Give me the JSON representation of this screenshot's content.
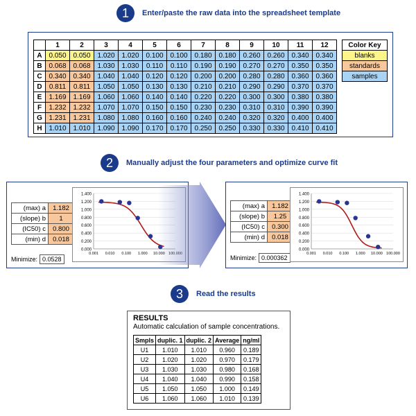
{
  "step1": {
    "number": "1",
    "title": "Enter/paste the raw data into the spreadsheet template"
  },
  "step2": {
    "number": "2",
    "title": "Manually adjust the four parameters and optimize curve fit"
  },
  "step3": {
    "number": "3",
    "title": "Read the results"
  },
  "grid": {
    "columns": [
      "1",
      "2",
      "3",
      "4",
      "5",
      "6",
      "7",
      "8",
      "9",
      "10",
      "11",
      "12"
    ],
    "rows": [
      {
        "label": "A",
        "values": [
          "0.050",
          "0.050",
          "1.020",
          "1.020",
          "0.100",
          "0.100",
          "0.180",
          "0.180",
          "0.260",
          "0.260",
          "0.340",
          "0.340"
        ]
      },
      {
        "label": "B",
        "values": [
          "0.068",
          "0.068",
          "1.030",
          "1.030",
          "0.110",
          "0.110",
          "0.190",
          "0.190",
          "0.270",
          "0.270",
          "0.350",
          "0.350"
        ]
      },
      {
        "label": "C",
        "values": [
          "0.340",
          "0.340",
          "1.040",
          "1.040",
          "0.120",
          "0.120",
          "0.200",
          "0.200",
          "0.280",
          "0.280",
          "0.360",
          "0.360"
        ]
      },
      {
        "label": "D",
        "values": [
          "0.811",
          "0.811",
          "1.050",
          "1.050",
          "0.130",
          "0.130",
          "0.210",
          "0.210",
          "0.290",
          "0.290",
          "0.370",
          "0.370"
        ]
      },
      {
        "label": "E",
        "values": [
          "1.169",
          "1.169",
          "1.060",
          "1.060",
          "0.140",
          "0.140",
          "0.220",
          "0.220",
          "0.300",
          "0.300",
          "0.380",
          "0.380"
        ]
      },
      {
        "label": "F",
        "values": [
          "1.232",
          "1.232",
          "1.070",
          "1.070",
          "0.150",
          "0.150",
          "0.230",
          "0.230",
          "0.310",
          "0.310",
          "0.390",
          "0.390"
        ]
      },
      {
        "label": "G",
        "values": [
          "1.231",
          "1.231",
          "1.080",
          "1.080",
          "0.160",
          "0.160",
          "0.240",
          "0.240",
          "0.320",
          "0.320",
          "0.400",
          "0.400"
        ]
      },
      {
        "label": "H",
        "values": [
          "1.010",
          "1.010",
          "1.090",
          "1.090",
          "0.170",
          "0.170",
          "0.250",
          "0.250",
          "0.330",
          "0.330",
          "0.410",
          "0.410"
        ]
      }
    ],
    "cell_types": [
      [
        "blank",
        "blank",
        "sample",
        "sample",
        "sample",
        "sample",
        "sample",
        "sample",
        "sample",
        "sample",
        "sample",
        "sample"
      ],
      [
        "std",
        "std",
        "sample",
        "sample",
        "sample",
        "sample",
        "sample",
        "sample",
        "sample",
        "sample",
        "sample",
        "sample"
      ],
      [
        "std",
        "std",
        "sample",
        "sample",
        "sample",
        "sample",
        "sample",
        "sample",
        "sample",
        "sample",
        "sample",
        "sample"
      ],
      [
        "std",
        "std",
        "sample",
        "sample",
        "sample",
        "sample",
        "sample",
        "sample",
        "sample",
        "sample",
        "sample",
        "sample"
      ],
      [
        "std",
        "std",
        "sample",
        "sample",
        "sample",
        "sample",
        "sample",
        "sample",
        "sample",
        "sample",
        "sample",
        "sample"
      ],
      [
        "std",
        "std",
        "sample",
        "sample",
        "sample",
        "sample",
        "sample",
        "sample",
        "sample",
        "sample",
        "sample",
        "sample"
      ],
      [
        "std",
        "std",
        "sample",
        "sample",
        "sample",
        "sample",
        "sample",
        "sample",
        "sample",
        "sample",
        "sample",
        "sample"
      ],
      [
        "sample",
        "sample",
        "sample",
        "sample",
        "sample",
        "sample",
        "sample",
        "sample",
        "sample",
        "sample",
        "sample",
        "sample"
      ]
    ]
  },
  "color_key": {
    "title": "Color Key",
    "items": [
      {
        "label": "blanks",
        "type": "blank"
      },
      {
        "label": "standards",
        "type": "std"
      },
      {
        "label": "samples",
        "type": "sample"
      }
    ]
  },
  "colors": {
    "blank": "#fdf58a",
    "std": "#f8c79b",
    "sample": "#a9d3f5",
    "accent": "#1a3a8a",
    "curve": "#b01a1a",
    "point": "#2a3590"
  },
  "fit_before": {
    "params": [
      {
        "label": "(max) a",
        "value": "1.182"
      },
      {
        "label": "(slope) b",
        "value": "1"
      },
      {
        "label": "(IC50) c",
        "value": "0.800"
      },
      {
        "label": "(min) d",
        "value": "0.018"
      }
    ],
    "minimize_label": "Minimize:",
    "minimize_value": "0.0528"
  },
  "fit_after": {
    "params": [
      {
        "label": "(max) a",
        "value": "1.182"
      },
      {
        "label": "(slope) b",
        "value": "1.25"
      },
      {
        "label": "(IC50) c",
        "value": "0.300"
      },
      {
        "label": "(min) d",
        "value": "0.018"
      }
    ],
    "minimize_label": "Minimize:",
    "minimize_value": "0.000362"
  },
  "chart_data": [
    {
      "type": "scatter",
      "x_scale": "log",
      "y_ticks": [
        "1.400",
        "1.200",
        "1.000",
        "0.800",
        "0.600",
        "0.400",
        "0.200",
        "0.000"
      ],
      "x_ticks": [
        "0.001",
        "0.010",
        "0.100",
        "1.000",
        "10.000",
        "100.000"
      ],
      "ylim": [
        0,
        1.4
      ],
      "xlim": [
        0.001,
        100
      ],
      "points": [
        [
          0.003,
          1.2
        ],
        [
          0.04,
          1.18
        ],
        [
          0.15,
          1.16
        ],
        [
          0.5,
          0.78
        ],
        [
          3,
          0.32
        ],
        [
          12,
          0.05
        ]
      ],
      "curve": {
        "a": 1.182,
        "b": 1,
        "c": 0.8,
        "d": 0.018
      }
    },
    {
      "type": "scatter",
      "x_scale": "log",
      "y_ticks": [
        "1.400",
        "1.200",
        "1.000",
        "0.800",
        "0.600",
        "0.400",
        "0.200",
        "0.000"
      ],
      "x_ticks": [
        "0.001",
        "0.010",
        "0.100",
        "1.000",
        "10.000",
        "100.000"
      ],
      "ylim": [
        0,
        1.4
      ],
      "xlim": [
        0.001,
        100
      ],
      "points": [
        [
          0.003,
          1.2
        ],
        [
          0.04,
          1.18
        ],
        [
          0.15,
          1.16
        ],
        [
          0.5,
          0.78
        ],
        [
          3,
          0.32
        ],
        [
          12,
          0.05
        ]
      ],
      "curve": {
        "a": 1.182,
        "b": 1.25,
        "c": 0.3,
        "d": 0.018
      }
    }
  ],
  "results": {
    "title": "RESULTS",
    "subtitle": "Automatic calculation of sample concentrations.",
    "headers": [
      "Smpls",
      "duplic. 1",
      "duplic. 2",
      "Average",
      "ng/ml"
    ],
    "rows": [
      [
        "U1",
        "1.010",
        "1.010",
        "0.960",
        "0.189"
      ],
      [
        "U2",
        "1.020",
        "1.020",
        "0.970",
        "0.179"
      ],
      [
        "U3",
        "1.030",
        "1.030",
        "0.980",
        "0.168"
      ],
      [
        "U4",
        "1.040",
        "1.040",
        "0.990",
        "0.158"
      ],
      [
        "U5",
        "1.050",
        "1.050",
        "1.000",
        "0.149"
      ],
      [
        "U6",
        "1.060",
        "1.060",
        "1.010",
        "0.139"
      ]
    ]
  }
}
